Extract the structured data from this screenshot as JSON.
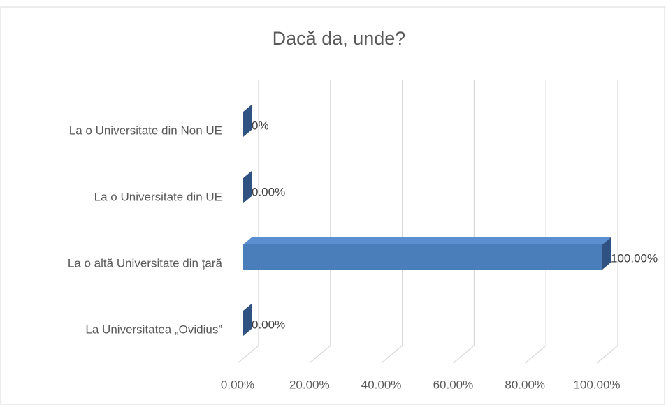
{
  "chart_data": {
    "type": "bar3d-horizontal",
    "title": "Dacă da, unde?",
    "categories": [
      "La o Universitate din Non UE",
      "La o Universitate din UE",
      "La o altă Universitate din țară",
      "La Universitatea „Ovidius”"
    ],
    "values": [
      0,
      0,
      100,
      0
    ],
    "value_labels": [
      "0%",
      "0.00%",
      "100.00%",
      "0.00%"
    ],
    "color": "#4a7ebb",
    "xlim": [
      0,
      100
    ],
    "xticks": [
      {
        "value": 0,
        "label": "0.00%"
      },
      {
        "value": 20,
        "label": "20.00%"
      },
      {
        "value": 40,
        "label": "40.00%"
      },
      {
        "value": 60,
        "label": "60.00%"
      },
      {
        "value": 80,
        "label": "80.00%"
      },
      {
        "value": 100,
        "label": "100.00%"
      }
    ],
    "grid": true
  }
}
